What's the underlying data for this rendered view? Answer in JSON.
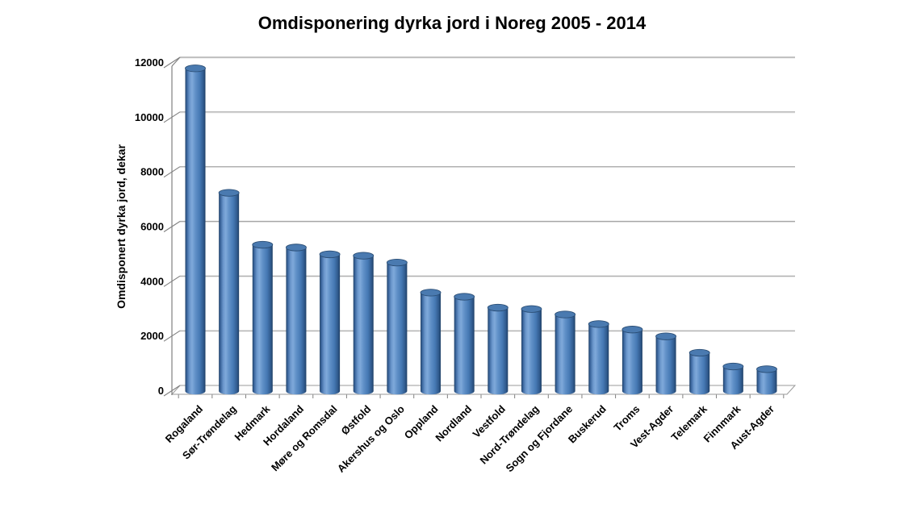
{
  "chart_data": {
    "type": "bar",
    "style": "3d-cylinder",
    "title": "Omdisponering dyrka jord i Noreg 2005 - 2014",
    "ylabel": "Omdisponert dyrka jord, dekar",
    "xlabel": "",
    "categories": [
      "Rogaland",
      "Sør-Trøndelag",
      "Hedmark",
      "Hordaland",
      "Møre og Romsdal",
      "Østfold",
      "Akershus og Oslo",
      "Oppland",
      "Nordland",
      "Vestfold",
      "Nord-Trøndelag",
      "Sogn og Fjordane",
      "Buskerud",
      "Troms",
      "Vest-Agder",
      "Telemark",
      "Finnmark",
      "Aust-Agder"
    ],
    "values": [
      11800,
      7250,
      5350,
      5250,
      5000,
      4950,
      4700,
      3600,
      3450,
      3050,
      3000,
      2800,
      2450,
      2250,
      2000,
      1400,
      900,
      800
    ],
    "ylim": [
      0,
      12000
    ],
    "yticks": [
      0,
      2000,
      4000,
      6000,
      8000,
      10000,
      12000
    ],
    "grid": true,
    "legend_position": "none",
    "colors": {
      "bar_base": "#4f81bd",
      "bar_dark": "#1f4066",
      "bar_highlight": "#7fa9da",
      "bar_top_face": "#4a7ab0",
      "bar_top_stroke": "#2a4d74",
      "gridline": "#a6a6a6",
      "gridline_shadow": "#e6e6e6",
      "axis": "#808080",
      "floor_stroke": "#9a9a9a",
      "text": "#000000",
      "background": "#ffffff"
    }
  }
}
